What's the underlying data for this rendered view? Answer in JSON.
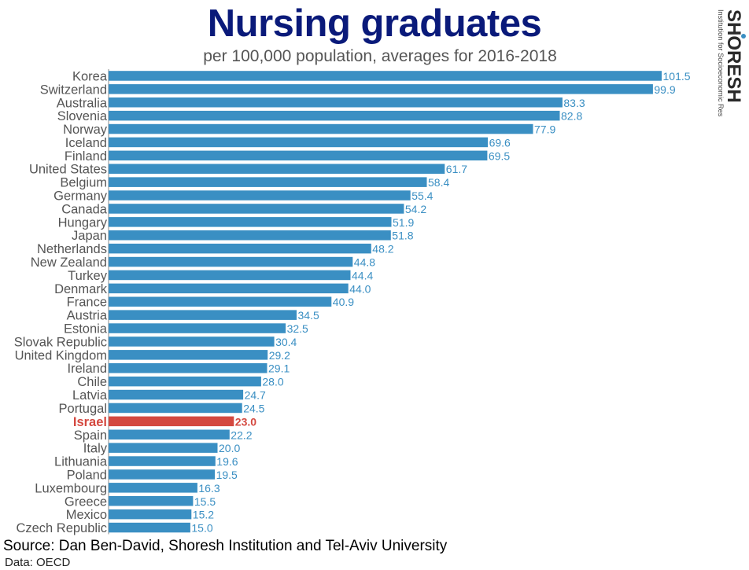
{
  "title": "Nursing graduates",
  "subtitle": "per 100,000 population, averages for 2016-2018",
  "source": "Source: Dan Ben-David, Shoresh Institution and Tel-Aviv University",
  "data_note": "Data: OECD",
  "logo": {
    "name": "SHORESH",
    "tagline": "Institution for Socioeconomic Research"
  },
  "colors": {
    "bar": "#3a8fc3",
    "value_label": "#3a8fc3",
    "highlight": "#d4483f",
    "title": "#0a1a7a",
    "category_label": "#555555"
  },
  "chart_data": {
    "type": "bar",
    "orientation": "horizontal",
    "title": "Nursing graduates",
    "subtitle": "per 100,000 population, averages for 2016-2018",
    "xlabel": "",
    "ylabel": "",
    "xlim": [
      0,
      101.5
    ],
    "grid": false,
    "highlight": "Israel",
    "categories": [
      "Korea",
      "Switzerland",
      "Australia",
      "Slovenia",
      "Norway",
      "Iceland",
      "Finland",
      "United States",
      "Belgium",
      "Germany",
      "Canada",
      "Hungary",
      "Japan",
      "Netherlands",
      "New Zealand",
      "Turkey",
      "Denmark",
      "France",
      "Austria",
      "Estonia",
      "Slovak Republic",
      "United Kingdom",
      "Ireland",
      "Chile",
      "Latvia",
      "Portugal",
      "Israel",
      "Spain",
      "Italy",
      "Lithuania",
      "Poland",
      "Luxembourg",
      "Greece",
      "Mexico",
      "Czech Republic"
    ],
    "values": [
      101.5,
      99.9,
      83.3,
      82.8,
      77.9,
      69.6,
      69.5,
      61.7,
      58.4,
      55.4,
      54.2,
      51.9,
      51.8,
      48.2,
      44.8,
      44.4,
      44.0,
      40.9,
      34.5,
      32.5,
      30.4,
      29.2,
      29.1,
      28.0,
      24.7,
      24.5,
      23.0,
      22.2,
      20.0,
      19.6,
      19.5,
      16.3,
      15.5,
      15.2,
      15.0
    ],
    "value_labels": [
      "101.5",
      "99.9",
      "83.3",
      "82.8",
      "77.9",
      "69.6",
      "69.5",
      "61.7",
      "58.4",
      "55.4",
      "54.2",
      "51.9",
      "51.8",
      "48.2",
      "44.8",
      "44.4",
      "44.0",
      "40.9",
      "34.5",
      "32.5",
      "30.4",
      "29.2",
      "29.1",
      "28.0",
      "24.7",
      "24.5",
      "23.0",
      "22.2",
      "20.0",
      "19.6",
      "19.5",
      "16.3",
      "15.5",
      "15.2",
      "15.0"
    ]
  }
}
